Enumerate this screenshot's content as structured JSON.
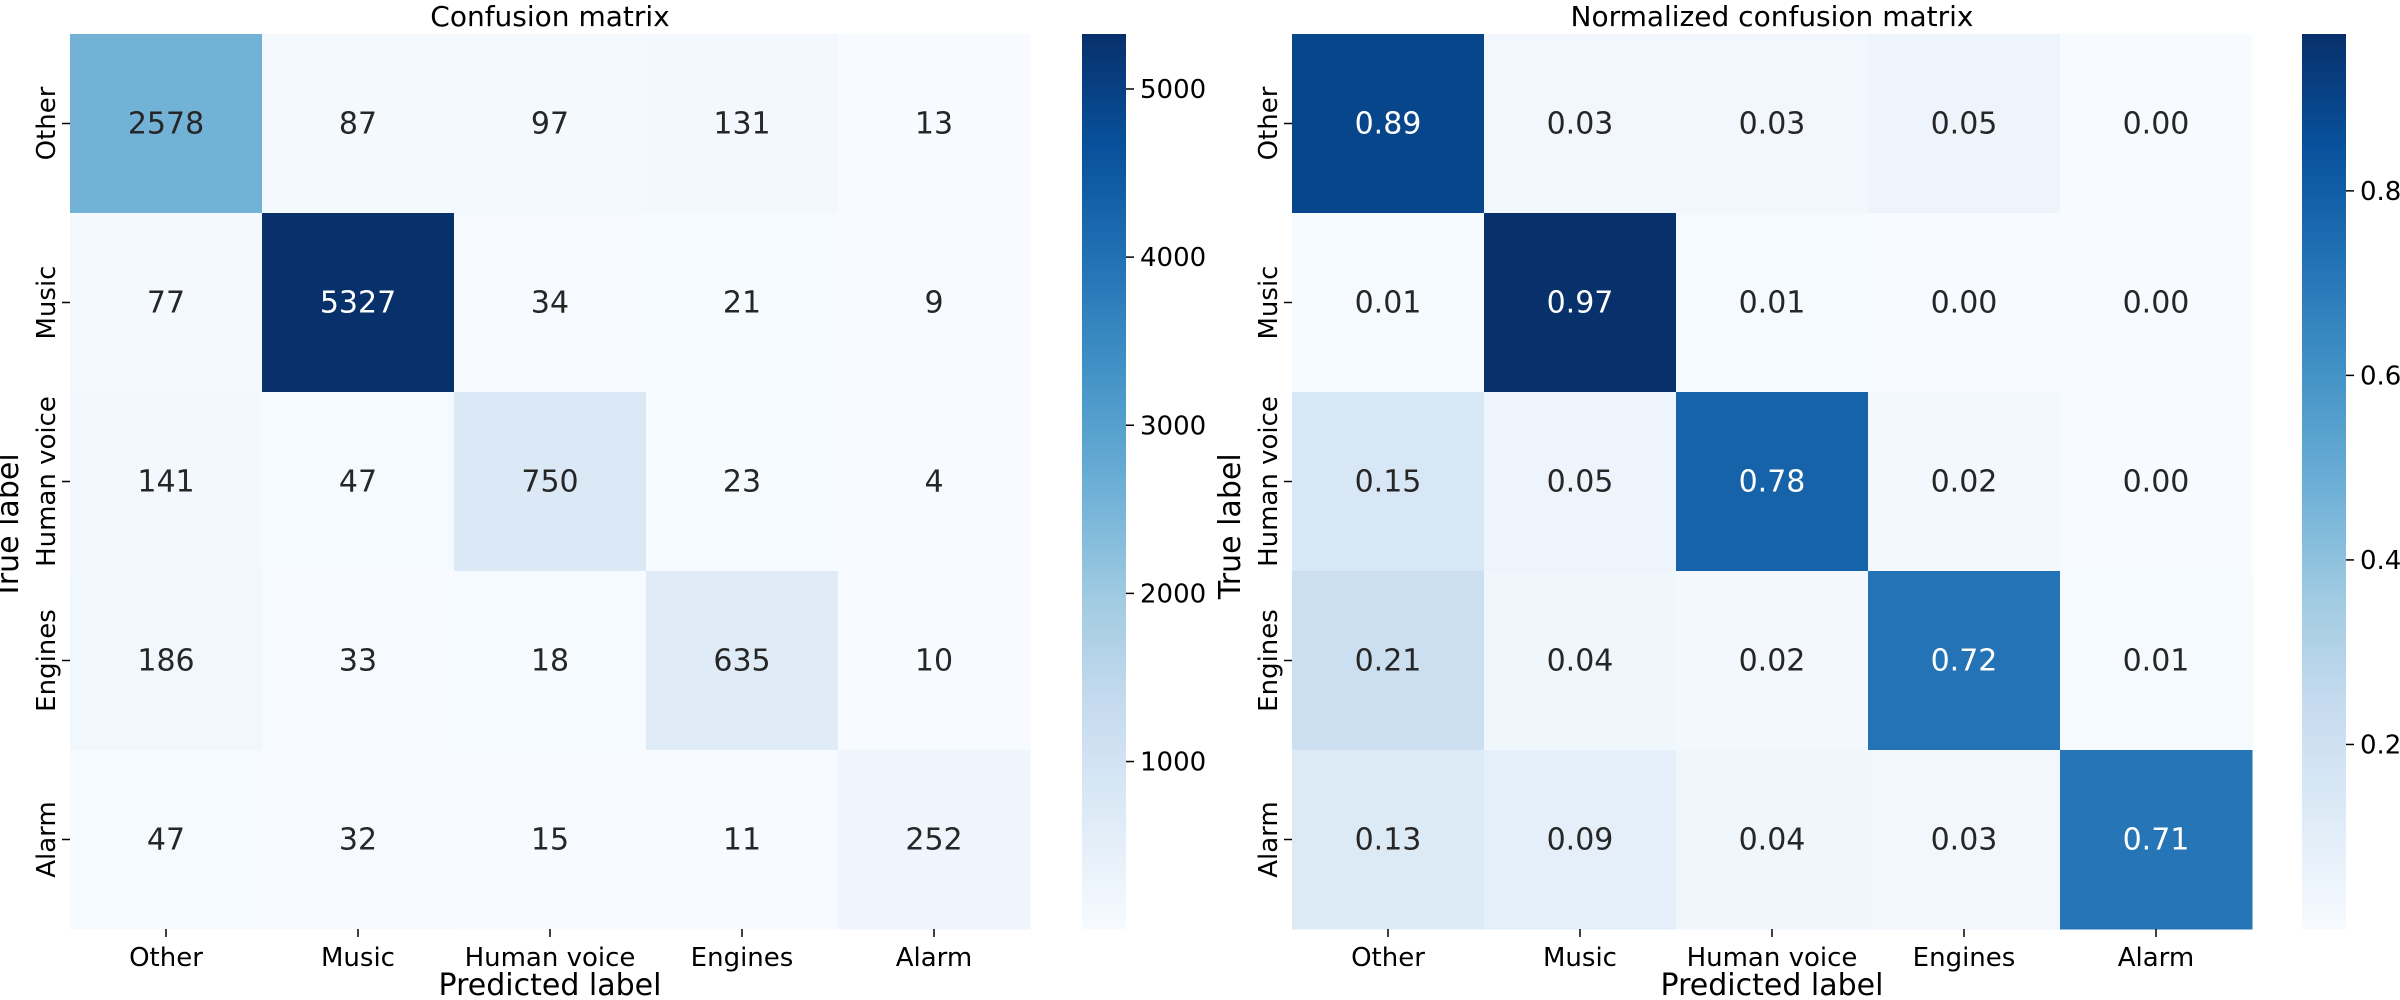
{
  "chart_data": [
    {
      "type": "heatmap",
      "title": "Confusion matrix",
      "xlabel": "Predicted label",
      "ylabel": "True label",
      "x_categories": [
        "Other",
        "Music",
        "Human voice",
        "Engines",
        "Alarm"
      ],
      "y_categories": [
        "Other",
        "Music",
        "Human voice",
        "Engines",
        "Alarm"
      ],
      "values": [
        [
          2578,
          87,
          97,
          131,
          13
        ],
        [
          77,
          5327,
          34,
          21,
          9
        ],
        [
          141,
          47,
          750,
          23,
          4
        ],
        [
          186,
          33,
          18,
          635,
          10
        ],
        [
          47,
          32,
          15,
          11,
          252
        ]
      ],
      "value_format": "integer",
      "colormap": "Blues",
      "vmin": 4,
      "vmax": 5327,
      "colorbar_ticks": [
        1000,
        2000,
        3000,
        4000,
        5000
      ],
      "colorbar_tick_labels": [
        "1000",
        "2000",
        "3000",
        "4000",
        "5000"
      ]
    },
    {
      "type": "heatmap",
      "title": "Normalized confusion matrix",
      "xlabel": "Predicted label",
      "ylabel": "True label",
      "x_categories": [
        "Other",
        "Music",
        "Human voice",
        "Engines",
        "Alarm"
      ],
      "y_categories": [
        "Other",
        "Music",
        "Human voice",
        "Engines",
        "Alarm"
      ],
      "values": [
        [
          0.89,
          0.03,
          0.03,
          0.05,
          0.0
        ],
        [
          0.01,
          0.97,
          0.01,
          0.0,
          0.0
        ],
        [
          0.15,
          0.05,
          0.78,
          0.02,
          0.0
        ],
        [
          0.21,
          0.04,
          0.02,
          0.72,
          0.01
        ],
        [
          0.13,
          0.09,
          0.04,
          0.03,
          0.71
        ]
      ],
      "value_format": "two_decimals",
      "colormap": "Blues",
      "vmin": 0.0,
      "vmax": 0.97,
      "colorbar_ticks": [
        0.2,
        0.4,
        0.6,
        0.8
      ],
      "colorbar_tick_labels": [
        "0.2",
        "0.4",
        "0.6",
        "0.8"
      ]
    }
  ]
}
